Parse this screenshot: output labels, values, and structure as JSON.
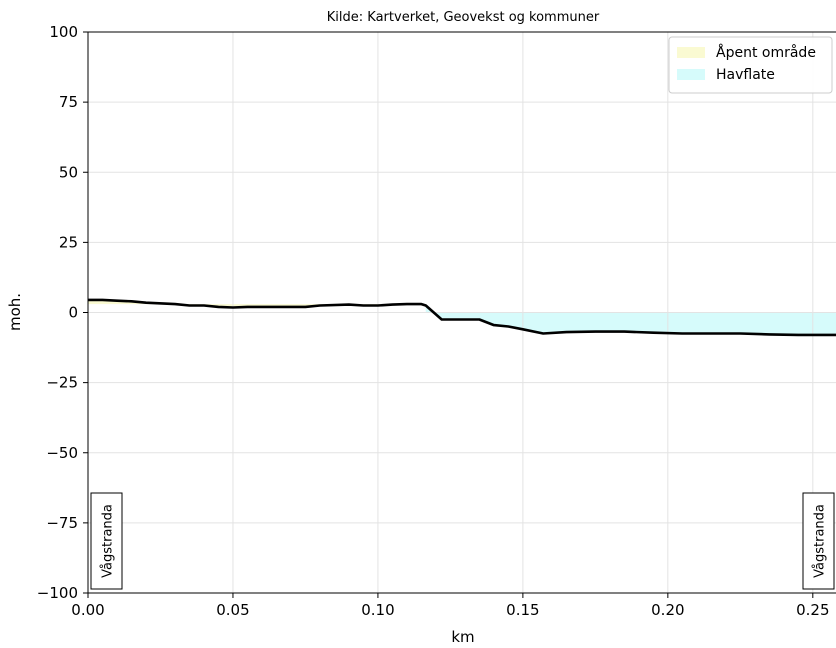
{
  "chart_data": {
    "type": "area",
    "title": "Kilde: Kartverket, Geovekst og kommuner",
    "xlabel": "km",
    "ylabel": "moh.",
    "xlim": [
      0.0,
      0.258
    ],
    "ylim": [
      -100,
      100
    ],
    "xticks": [
      0.0,
      0.05,
      0.1,
      0.15,
      0.2,
      0.25
    ],
    "xtick_labels": [
      "0.00",
      "0.05",
      "0.10",
      "0.15",
      "0.20",
      "0.25"
    ],
    "yticks": [
      100,
      75,
      50,
      25,
      0,
      -25,
      -50,
      -75,
      -100
    ],
    "ytick_labels": [
      "100",
      "75",
      "50",
      "25",
      "0",
      "−25",
      "−50",
      "−75",
      "−100"
    ],
    "grid": true,
    "legend_position": "top-right",
    "legend": [
      {
        "label": "Åpent område",
        "color": "#fafad2"
      },
      {
        "label": "Havflate",
        "color": "#d6fbfb"
      }
    ],
    "profile_color": "#000000",
    "profile": {
      "x": [
        0.0,
        0.005,
        0.01,
        0.015,
        0.02,
        0.03,
        0.035,
        0.04,
        0.045,
        0.05,
        0.055,
        0.06,
        0.07,
        0.075,
        0.08,
        0.09,
        0.095,
        0.1,
        0.105,
        0.11,
        0.115,
        0.1165,
        0.122,
        0.128,
        0.135,
        0.14,
        0.145,
        0.15,
        0.157,
        0.165,
        0.175,
        0.185,
        0.195,
        0.205,
        0.215,
        0.225,
        0.235,
        0.245,
        0.258
      ],
      "y": [
        4.5,
        4.5,
        4.2,
        4.0,
        3.5,
        3.0,
        2.5,
        2.5,
        2.0,
        1.8,
        2.0,
        2.0,
        2.0,
        2.0,
        2.5,
        2.8,
        2.5,
        2.5,
        2.8,
        3.0,
        3.0,
        2.5,
        -2.5,
        -2.5,
        -2.5,
        -4.5,
        -5.0,
        -6.0,
        -7.5,
        -7.0,
        -6.8,
        -6.8,
        -7.2,
        -7.5,
        -7.5,
        -7.5,
        -7.8,
        -8.0,
        -8.0
      ]
    },
    "regions": [
      {
        "name": "Åpent område",
        "x_start": 0.0,
        "x_end": 0.1165,
        "top": 3.0
      },
      {
        "name": "Havflate",
        "x_start": 0.1165,
        "x_end": 0.258,
        "top": 0.0
      }
    ],
    "endpoint_labels": [
      {
        "text": "Vågstranda",
        "x": 0.0
      },
      {
        "text": "Vågstranda",
        "x": 0.258
      }
    ]
  }
}
